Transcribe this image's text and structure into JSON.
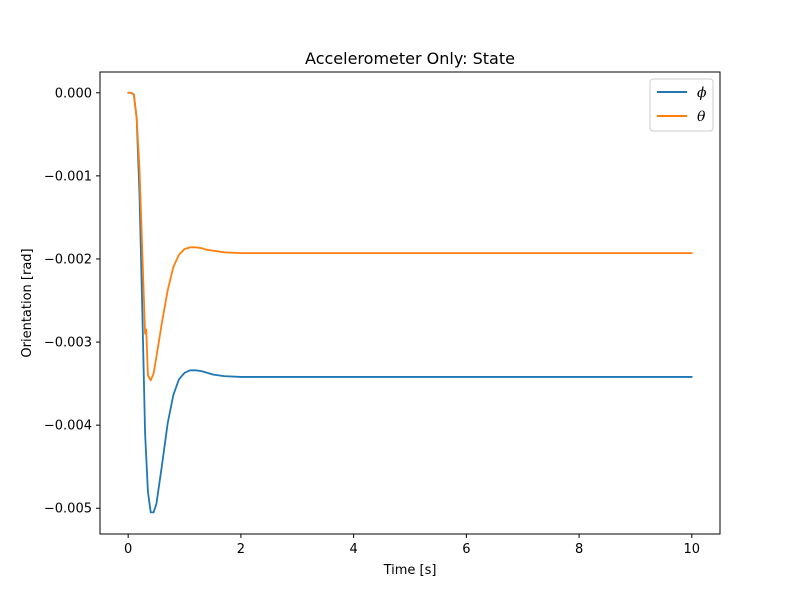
{
  "chart_data": {
    "type": "line",
    "title": "Accelerometer Only: State",
    "xlabel": "Time [s]",
    "ylabel": "Orientation [rad]",
    "xlim": [
      -0.5,
      10.5
    ],
    "ylim": [
      -0.00531,
      0.00025
    ],
    "xticks": [
      0,
      2,
      4,
      6,
      8,
      10
    ],
    "xtick_labels": [
      "0",
      "2",
      "4",
      "6",
      "8",
      "10"
    ],
    "yticks": [
      0.0,
      -0.001,
      -0.002,
      -0.003,
      -0.004,
      -0.005
    ],
    "ytick_labels": [
      "0.000",
      "−0.001",
      "−0.002",
      "−0.003",
      "−0.004",
      "−0.005"
    ],
    "grid": false,
    "legend_position": "top-right",
    "series": [
      {
        "name": "ϕ",
        "color": "#1f77b4",
        "x": [
          0,
          0.05,
          0.1,
          0.15,
          0.2,
          0.25,
          0.3,
          0.35,
          0.4,
          0.45,
          0.5,
          0.6,
          0.7,
          0.8,
          0.9,
          1.0,
          1.1,
          1.2,
          1.3,
          1.4,
          1.5,
          1.7,
          2.0,
          2.5,
          3,
          4,
          5,
          6,
          7,
          8,
          9,
          10
        ],
        "y": [
          0.0,
          0.0,
          -2e-05,
          -0.0003,
          -0.0012,
          -0.0026,
          -0.0041,
          -0.0048,
          -0.00505,
          -0.00505,
          -0.00495,
          -0.00448,
          -0.00398,
          -0.00364,
          -0.00345,
          -0.00337,
          -0.00334,
          -0.00334,
          -0.00335,
          -0.00337,
          -0.00339,
          -0.00341,
          -0.00342,
          -0.00342,
          -0.00342,
          -0.00342,
          -0.00342,
          -0.00342,
          -0.00342,
          -0.00342,
          -0.00342,
          -0.00342
        ]
      },
      {
        "name": "θ",
        "color": "#ff7f0e",
        "x": [
          0,
          0.05,
          0.1,
          0.15,
          0.2,
          0.25,
          0.3,
          0.32,
          0.35,
          0.4,
          0.45,
          0.5,
          0.6,
          0.7,
          0.8,
          0.9,
          1.0,
          1.1,
          1.2,
          1.3,
          1.4,
          1.5,
          1.7,
          2.0,
          2.5,
          3,
          4,
          5,
          6,
          7,
          8,
          9,
          10
        ],
        "y": [
          0.0,
          0.0,
          -2e-05,
          -0.0003,
          -0.0009,
          -0.0019,
          -0.0029,
          -0.00285,
          -0.0034,
          -0.00346,
          -0.00338,
          -0.00318,
          -0.00276,
          -0.00238,
          -0.0021,
          -0.00195,
          -0.00188,
          -0.00186,
          -0.00186,
          -0.00187,
          -0.00189,
          -0.0019,
          -0.00192,
          -0.00193,
          -0.00193,
          -0.00193,
          -0.00193,
          -0.00193,
          -0.00193,
          -0.00193,
          -0.00193,
          -0.00193,
          -0.00193
        ]
      }
    ]
  }
}
